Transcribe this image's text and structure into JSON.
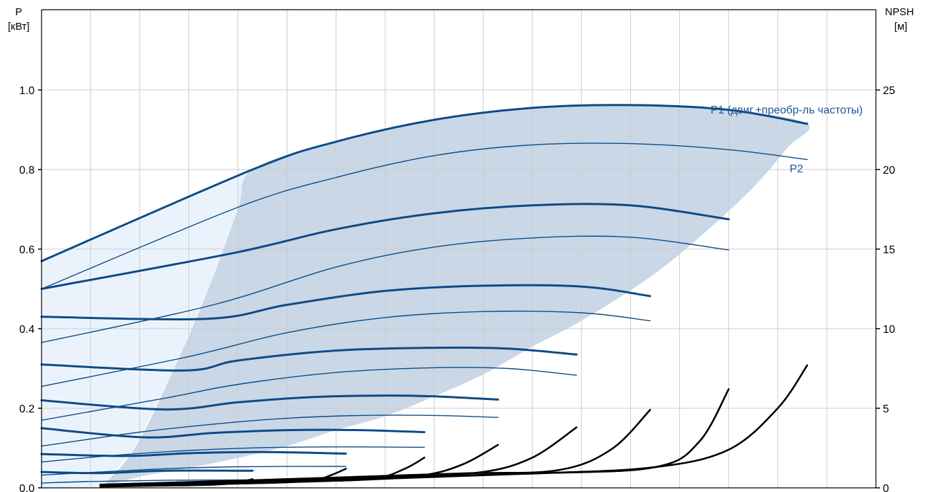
{
  "chart_data": {
    "type": "line",
    "title": "",
    "x_ticks_count": 17,
    "left_axis": {
      "label_line1": "P",
      "label_line2": "[кВт]",
      "ylim": [
        0,
        1.0
      ],
      "ticks": [
        0.0,
        0.2,
        0.4,
        0.6,
        0.8,
        1.0
      ],
      "tick_labels": [
        "0.0",
        "0.2",
        "0.4",
        "0.6",
        "0.8",
        "1.0"
      ]
    },
    "right_axis": {
      "label_line1": "NPSH",
      "label_line2": "[м]",
      "ylim": [
        0,
        25
      ],
      "ticks": [
        0,
        5,
        10,
        15,
        20,
        25
      ],
      "tick_labels": [
        "0",
        "5",
        "10",
        "15",
        "20",
        "25"
      ]
    },
    "x_range": [
      0,
      17
    ],
    "grid": true,
    "colors": {
      "p1": "#0c4a86",
      "p2": "#0c4a86",
      "npsh": "#000000",
      "region_dark": "#c9d7e6",
      "region_light": "#eaf3fc",
      "grid": "#cccccc",
      "label": "#1c5694"
    },
    "annotations": {
      "p1_label": "P1 (двиг.+преобр-ль частоты)",
      "p2_label": "P2"
    },
    "p1_curves": [
      {
        "x": [
          0,
          4.3,
          6.0,
          8.0,
          10.0,
          12.0,
          14.0,
          15.6
        ],
        "y": [
          0.57,
          0.8,
          0.87,
          0.925,
          0.955,
          0.962,
          0.95,
          0.915
        ]
      },
      {
        "x": [
          0,
          3.9,
          6.0,
          8.0,
          10.0,
          12.0,
          14.0
        ],
        "y": [
          0.5,
          0.59,
          0.65,
          0.69,
          0.71,
          0.71,
          0.675
        ]
      },
      {
        "x": [
          0,
          3.4,
          5.0,
          7.0,
          9.0,
          11.0,
          12.4
        ],
        "y": [
          0.43,
          0.425,
          0.46,
          0.495,
          0.508,
          0.506,
          0.482
        ]
      },
      {
        "x": [
          0,
          2.9,
          4.0,
          6.0,
          8.0,
          9.5,
          10.9
        ],
        "y": [
          0.31,
          0.295,
          0.32,
          0.345,
          0.352,
          0.35,
          0.335
        ]
      },
      {
        "x": [
          0,
          2.5,
          4.0,
          5.5,
          7.0,
          8.0,
          9.3
        ],
        "y": [
          0.22,
          0.197,
          0.215,
          0.228,
          0.232,
          0.23,
          0.222
        ]
      },
      {
        "x": [
          0,
          2.1,
          3.5,
          5.0,
          6.5,
          7.8
        ],
        "y": [
          0.15,
          0.127,
          0.138,
          0.145,
          0.145,
          0.14
        ]
      },
      {
        "x": [
          0,
          1.7,
          3.0,
          4.5,
          6.2
        ],
        "y": [
          0.085,
          0.08,
          0.087,
          0.09,
          0.086
        ]
      },
      {
        "x": [
          0,
          1.2,
          2.5,
          4.3
        ],
        "y": [
          0.04,
          0.037,
          0.043,
          0.043
        ]
      }
    ],
    "p2_curves": [
      {
        "x": [
          0,
          4.0,
          6.0,
          8.0,
          10.0,
          12.0,
          14.0,
          15.6
        ],
        "y": [
          0.5,
          0.705,
          0.78,
          0.835,
          0.862,
          0.865,
          0.85,
          0.825
        ]
      },
      {
        "x": [
          0,
          3.5,
          6.0,
          8.0,
          10.0,
          12.0,
          14.0
        ],
        "y": [
          0.365,
          0.46,
          0.555,
          0.605,
          0.628,
          0.63,
          0.598
        ]
      },
      {
        "x": [
          0,
          3.0,
          5.0,
          7.0,
          9.0,
          11.0,
          12.4
        ],
        "y": [
          0.255,
          0.33,
          0.39,
          0.428,
          0.443,
          0.44,
          0.42
        ]
      },
      {
        "x": [
          0,
          2.5,
          4.0,
          6.0,
          8.0,
          9.5,
          10.9
        ],
        "y": [
          0.17,
          0.225,
          0.26,
          0.29,
          0.302,
          0.3,
          0.283
        ]
      },
      {
        "x": [
          0,
          2.0,
          3.5,
          5.0,
          6.5,
          8.0,
          9.3
        ],
        "y": [
          0.105,
          0.14,
          0.16,
          0.175,
          0.182,
          0.182,
          0.177
        ]
      },
      {
        "x": [
          0,
          1.5,
          3.0,
          4.5,
          6.0,
          7.8
        ],
        "y": [
          0.065,
          0.082,
          0.094,
          0.101,
          0.103,
          0.102
        ]
      },
      {
        "x": [
          0,
          1.2,
          2.5,
          4.0,
          6.2
        ],
        "y": [
          0.032,
          0.04,
          0.048,
          0.053,
          0.054
        ]
      },
      {
        "x": [
          0,
          1.0,
          2.5,
          4.3
        ],
        "y": [
          0.012,
          0.016,
          0.019,
          0.02
        ]
      }
    ],
    "npsh_curves": [
      {
        "x": [
          1.2,
          5.0,
          10.0,
          12.5,
          14.0,
          15.0,
          15.6
        ],
        "y": [
          0.2,
          0.4,
          0.9,
          1.3,
          2.4,
          5.0,
          7.7
        ]
      },
      {
        "x": [
          1.2,
          5.0,
          10.0,
          12.5,
          13.4,
          14.0
        ],
        "y": [
          0.2,
          0.5,
          0.9,
          1.3,
          2.9,
          6.2
        ]
      },
      {
        "x": [
          1.2,
          4.5,
          8.5,
          10.5,
          11.6,
          12.4
        ],
        "y": [
          0.2,
          0.5,
          0.9,
          1.1,
          2.4,
          4.9
        ]
      },
      {
        "x": [
          1.2,
          4.0,
          7.5,
          9.0,
          10.0,
          10.9
        ],
        "y": [
          0.15,
          0.4,
          0.8,
          1.0,
          1.9,
          3.8
        ]
      },
      {
        "x": [
          1.2,
          3.5,
          6.5,
          7.8,
          8.6,
          9.3
        ],
        "y": [
          0.15,
          0.3,
          0.5,
          0.8,
          1.5,
          2.7
        ]
      },
      {
        "x": [
          1.2,
          3.0,
          5.5,
          6.8,
          7.4,
          7.8
        ],
        "y": [
          0.1,
          0.2,
          0.4,
          0.6,
          1.2,
          1.9
        ]
      },
      {
        "x": [
          1.2,
          2.5,
          4.5,
          5.5,
          5.9,
          6.2
        ],
        "y": [
          0.1,
          0.18,
          0.3,
          0.45,
          0.8,
          1.2
        ]
      },
      {
        "x": [
          1.2,
          2.0,
          3.5,
          4.0,
          4.3
        ],
        "y": [
          0.08,
          0.12,
          0.2,
          0.35,
          0.55
        ]
      }
    ],
    "region_dark": {
      "x": [
        1.2,
        1.9,
        2.7,
        3.4,
        4.0,
        4.3,
        6.0,
        8.0,
        10.0,
        12.0,
        14.0,
        15.6,
        15.2,
        14.5,
        13.5,
        12.4,
        11.0,
        10.0,
        9.0,
        8.0,
        7.0,
        6.0,
        5.0,
        4.0,
        3.0,
        2.0,
        1.2
      ],
      "y": [
        0.0,
        0.1,
        0.3,
        0.5,
        0.7,
        0.8,
        0.87,
        0.925,
        0.955,
        0.962,
        0.95,
        0.915,
        0.855,
        0.755,
        0.64,
        0.53,
        0.42,
        0.355,
        0.285,
        0.23,
        0.18,
        0.145,
        0.105,
        0.075,
        0.05,
        0.028,
        0.0
      ]
    },
    "region_light": {
      "x": [
        0,
        4.3,
        4.0,
        3.4,
        2.7,
        1.9,
        1.2,
        0
      ],
      "y": [
        0.57,
        0.8,
        0.7,
        0.5,
        0.3,
        0.1,
        0.0,
        0.0
      ]
    }
  }
}
